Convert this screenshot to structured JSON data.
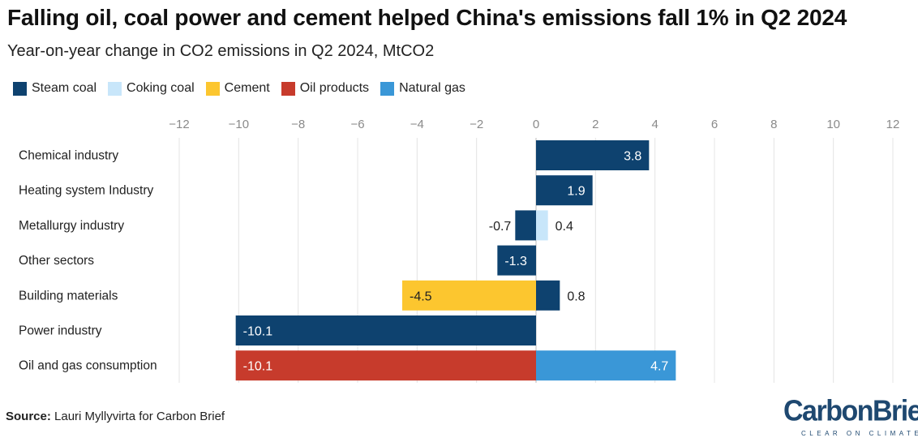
{
  "header": {
    "title": "Falling oil, coal power and cement helped China's emissions fall 1% in Q2 2024",
    "subtitle": "Year-on-year change in CO2 emissions in Q2 2024, MtCO2"
  },
  "legend": [
    {
      "label": "Steam coal",
      "color": "#0e426f"
    },
    {
      "label": "Coking coal",
      "color": "#c8e6fa"
    },
    {
      "label": "Cement",
      "color": "#fcc62f"
    },
    {
      "label": "Oil products",
      "color": "#c73b2c"
    },
    {
      "label": "Natural gas",
      "color": "#3a97d7"
    }
  ],
  "footer": {
    "source_label": "Source:",
    "source_text": "Lauri Myllyvirta for Carbon Brief"
  },
  "logo": {
    "wordmark": "CarbonBrief",
    "tagline": "CLEAR ON CLIMATE"
  },
  "chart_data": {
    "type": "bar",
    "orientation": "horizontal",
    "stacked": true,
    "categories": [
      "Chemical industry",
      "Heating system Industry",
      "Metallurgy industry",
      "Other sectors",
      "Building materials",
      "Power industry",
      "Oil and gas consumption"
    ],
    "series": [
      {
        "name": "Steam coal",
        "color": "#0e426f",
        "values": [
          3.8,
          1.9,
          -0.7,
          -1.3,
          0.8,
          -10.1,
          null
        ]
      },
      {
        "name": "Coking coal",
        "color": "#c8e6fa",
        "values": [
          null,
          null,
          0.4,
          null,
          null,
          null,
          null
        ]
      },
      {
        "name": "Cement",
        "color": "#fcc62f",
        "values": [
          null,
          null,
          null,
          null,
          -4.5,
          null,
          null
        ]
      },
      {
        "name": "Oil products",
        "color": "#c73b2c",
        "values": [
          null,
          null,
          null,
          null,
          null,
          null,
          -10.1
        ]
      },
      {
        "name": "Natural gas",
        "color": "#3a97d7",
        "values": [
          null,
          null,
          null,
          null,
          null,
          null,
          4.7
        ]
      }
    ],
    "xlim": [
      -12,
      12
    ],
    "xticks": [
      "−12",
      "−10",
      "−8",
      "−6",
      "−4",
      "−2",
      "0",
      "2",
      "4",
      "6",
      "8",
      "10",
      "12"
    ],
    "grid": true,
    "legend_position": "top-left",
    "title": "Falling oil, coal power and cement helped China's emissions fall 1% in Q2 2024",
    "xlabel": "",
    "ylabel": ""
  }
}
